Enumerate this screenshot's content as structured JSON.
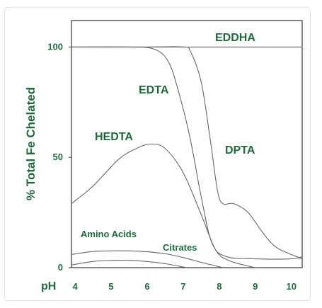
{
  "chart_data": {
    "type": "line",
    "title": "",
    "xlabel": "pH",
    "ylabel": "% Total Fe Chelated",
    "xlim": [
      3.9,
      10.3
    ],
    "ylim": [
      0,
      112
    ],
    "x_ticks": [
      "4",
      "5",
      "6",
      "7",
      "8",
      "9",
      "10"
    ],
    "y_ticks": [
      "0",
      "50",
      "100"
    ],
    "grid": false,
    "legend": "none (series labelled directly on chart)",
    "series": [
      {
        "name": "EDDHA",
        "x": [
          3.9,
          5,
          6,
          7,
          8,
          9,
          10,
          10.3
        ],
        "y": [
          100,
          100,
          100,
          100,
          100,
          100,
          100,
          100
        ]
      },
      {
        "name": "EDTA",
        "x": [
          3.9,
          5.5,
          6.2,
          6.6,
          6.9,
          7.2,
          7.5,
          7.8,
          8.2,
          9,
          10,
          10.3
        ],
        "y": [
          100,
          100,
          99,
          93,
          78,
          58,
          32,
          11,
          5,
          4,
          4,
          5
        ]
      },
      {
        "name": "HEDTA",
        "x": [
          3.9,
          4.5,
          5.2,
          5.7,
          6.1,
          6.5,
          7,
          7.5,
          7.9,
          8.3,
          9
        ],
        "y": [
          29,
          37,
          49,
          54,
          56,
          54,
          43,
          24,
          8,
          3,
          0
        ]
      },
      {
        "name": "DPTA",
        "x": [
          3.9,
          6,
          7,
          7.2,
          7.5,
          7.75,
          7.95,
          8.1,
          8.4,
          8.8,
          9.2,
          9.6,
          10.3
        ],
        "y": [
          100,
          100,
          100,
          98,
          84,
          58,
          35,
          29,
          29,
          25,
          16,
          9,
          4
        ]
      },
      {
        "name": "Amino Acids",
        "x": [
          3.9,
          4.5,
          5,
          5.5,
          6,
          6.5,
          7,
          7.5,
          8.1
        ],
        "y": [
          6,
          7.3,
          7.6,
          7.6,
          7.2,
          6.3,
          4.6,
          2.4,
          0
        ]
      },
      {
        "name": "Citrates",
        "x": [
          3.9,
          4.5,
          5,
          5.5,
          6,
          6.5,
          7,
          7.1
        ],
        "y": [
          1.2,
          2.8,
          3.3,
          3.3,
          2.8,
          1.8,
          0.3,
          0
        ]
      }
    ]
  }
}
